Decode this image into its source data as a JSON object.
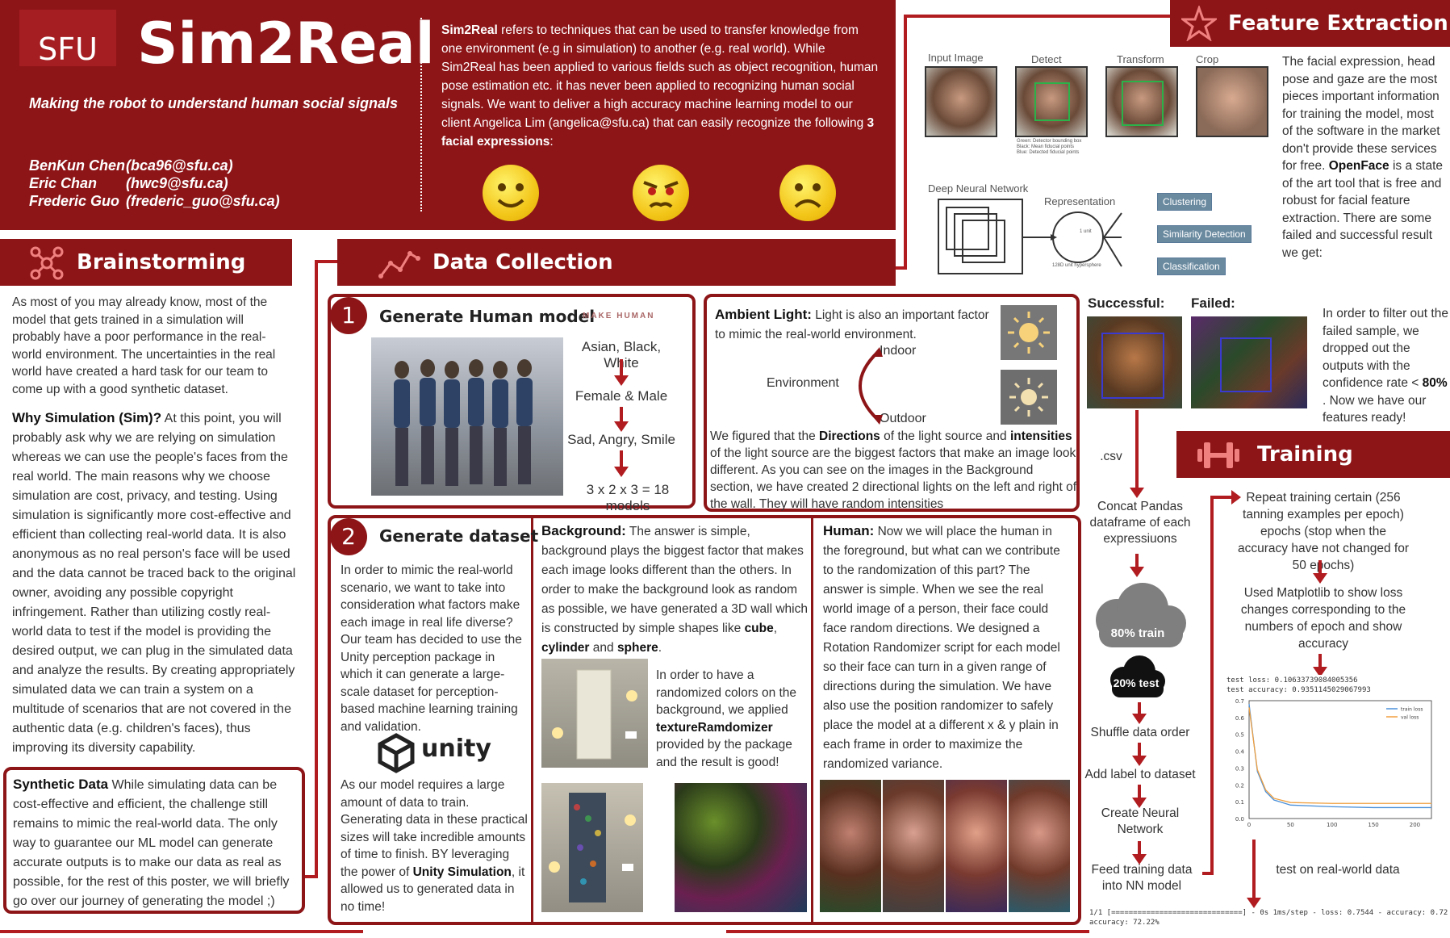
{
  "header": {
    "logo": "SFU",
    "title": "Sim2Real",
    "subtitle": "Making the robot to understand human social signals",
    "authors": [
      {
        "name": "BenKun Chen",
        "email": "(bca96@sfu.ca)"
      },
      {
        "name": "Eric Chan",
        "email": "(hwc9@sfu.ca)"
      },
      {
        "name": "Frederic Guo",
        "email": "(frederic_guo@sfu.ca)"
      }
    ],
    "intro_bold": "Sim2Real",
    "intro": " refers to techniques that can be used to transfer knowledge from one environment (e.g in simulation) to another (e.g. real world). While Sim2Real has been applied to various fields such as object recognition, human pose estimation etc. it has never been applied to recognizing human social signals. We want to deliver a high accuracy machine learning model to our client Angelica Lim (angelica@sfu.ca) that can easily recognize the following ",
    "intro_bold2": "3 facial expressions",
    "intro_end": ":"
  },
  "brainstorming": {
    "title": "Brainstorming",
    "p1": "As most of you may already know, most of the model that gets trained in a simulation will probably have a poor performance in the real-world environment. The uncertainties in the real world have created a hard task for our team to come up with a good synthetic dataset.",
    "why_title": "Why Simulation (Sim)?",
    "why": " At this point, you will probably ask why we are relying on simulation whereas we can use the people's faces from the real world. The main reasons why we choose simulation are cost, privacy, and testing. Using simulation is significantly more cost-effective and efficient than collecting real-world data. It is also anonymous as no real person's face will be used and the data cannot be traced back to the original owner, avoiding any possible copyright infringement. Rather than utilizing costly real-world data to test if the model is providing the desired output, we can plug in the simulated data and analyze the results. By creating appropriately simulated data we can train a system on a multitude of scenarios that are not covered in the authentic data (e.g. children's faces), thus improving its diversity capability.",
    "synth_title": "Synthetic Data",
    "synth": " While simulating data can be cost-effective and efficient, the challenge still remains to mimic the real-world data. The only way to guarantee our ML model can generate accurate outputs is to make our data as real as possible, for the rest of this poster, we will briefly go over our journey of generating the model ;)"
  },
  "data_collection": {
    "title": "Data Collection",
    "step1": {
      "num": "1",
      "title": "Generate Human model",
      "logo": "MAKE HUMAN",
      "flow": [
        "Asian, Black, White",
        "Female & Male",
        "Sad, Angry, Smile",
        "3 x 2 x 3 = 18 models"
      ]
    },
    "ambient": {
      "title": "Ambient Light:",
      "intro": " Light is also an important factor to mimic the real-world environment.",
      "env": "Environment",
      "indoor": "Indoor",
      "outdoor": "Outdoor",
      "p_a": "We figured that the ",
      "p_b": "Directions",
      "p_c": " of the light source and ",
      "p_d": "intensities",
      "p_e": " of the light source are the biggest factors that make an image look different. As you can see on the images in the Background section, we have created 2 directional lights on the left and right of the wall. They will have random intensities"
    },
    "step2": {
      "num": "2",
      "title": "Generate dataset",
      "p1": "In order to mimic the real-world scenario, we want to take into consideration what factors make each image in real life diverse? Our team has decided to use the Unity perception package in which it can generate a large- scale dataset for perception-based machine learning training and validation.",
      "unity": "unity",
      "p2a": "As our model requires a large amount of data to train. Generating data in these practical sizes will take incredible amounts of time to finish. BY leveraging the power of ",
      "p2b": "Unity Simulation",
      "p2c": ", it allowed us to generated data in no time!"
    },
    "background": {
      "title": "Background:",
      "p1a": " The answer is simple, background plays the biggest factor that makes each image looks different than the others. In order to make the background look as random as possible, we have generated a 3D wall which is constructed by simple shapes like ",
      "cube": "cube",
      "comma": ", ",
      "cylinder": "cylinder",
      "and": " and ",
      "sphere": "sphere",
      "dot": ".",
      "p2a": "In order to have a randomized colors on the background, we applied ",
      "p2b": "textureRamdomizer",
      "p2c": " provided by the package and the result is good!"
    },
    "human": {
      "title": "Human:",
      "p": " Now we will place the human in the foreground, but what can we contribute to the randomization of this part? The answer is simple. When we see the real world image of a person, their face could face random directions. We designed a Rotation Randomizer script for each model so their face can turn in a given range of directions during the simulation. We have also use the position randomizer to safely place the model at a different x & y plain in each frame in order to maximize the randomized variance."
    }
  },
  "feature_extraction": {
    "title": "Feature Extraction",
    "diagram": {
      "input": "Input Image",
      "detect": "Detect",
      "transform": "Transform",
      "crop": "Crop",
      "legend": [
        "Green: Detector bounding box",
        "Black: Mean fiducial points",
        "Blue: Detected fiducial points"
      ],
      "dnn": "Deep Neural Network",
      "repr": "Representation",
      "unit": "1 unit",
      "hyper": "128D unit hypersphere",
      "outputs": [
        "Clustering",
        "Similarity Detection",
        "Classification"
      ]
    },
    "p1": "The facial expression, head pose and gaze are the most pieces important information for training the model, most of the software in the market don't provide these services for free. ",
    "openface": "OpenFace",
    "p2": " is a state of the art tool that is free and robust for facial feature extraction. There are some failed and successful result we get:",
    "successful": "Successful:",
    "failed": "Failed:",
    "filter_a": "In order to filter out the failed sample, we dropped out the outputs with the confidence rate < ",
    "filter_b": "80%",
    "filter_c": " . Now we have our features ready!"
  },
  "pipeline": {
    "csv": ".csv",
    "concat": "Concat Pandas dataframe of each expressiuons",
    "train": "80% train",
    "test": "20% test",
    "steps": [
      "Shuffle data order",
      "Add label to dataset",
      "Create Neural Network",
      "Feed training data into NN model"
    ]
  },
  "training": {
    "title": "Training",
    "s1": "Repeat training certain (256 tanning examples per epoch) epochs (stop when the accuracy have not changed for 50 epochs)",
    "s2": "Used Matplotlib to show loss changes corresponding to the numbers of epoch and show accuracy",
    "test_loss": "test loss: 0.10633739084005356",
    "test_acc": "test accuracy: 0.9351145029067993",
    "legend": [
      "train loss",
      "val loss"
    ],
    "yticks": [
      "0.7",
      "0.6",
      "0.5",
      "0.4",
      "0.3",
      "0.2",
      "0.1",
      "0.0"
    ],
    "xticks": [
      "0",
      "50",
      "100",
      "150",
      "200"
    ],
    "s3": "test on real-world data",
    "console1": "1/1 [==============================] - 0s 1ms/step - loss: 0.7544 - accuracy: 0.72",
    "console2": "accuracy: 72.22%"
  },
  "chart_data": {
    "type": "line",
    "x": [
      0,
      10,
      20,
      30,
      50,
      100,
      150,
      200,
      220
    ],
    "series": [
      {
        "name": "train loss",
        "values": [
          0.68,
          0.28,
          0.16,
          0.11,
          0.08,
          0.07,
          0.065,
          0.065,
          0.065
        ]
      },
      {
        "name": "val loss",
        "values": [
          0.66,
          0.29,
          0.17,
          0.12,
          0.095,
          0.09,
          0.09,
          0.09,
          0.09
        ]
      }
    ],
    "ylim": [
      0,
      0.7
    ],
    "xlim": [
      0,
      220
    ],
    "colors": [
      "#4a90d9",
      "#f0a040"
    ]
  }
}
